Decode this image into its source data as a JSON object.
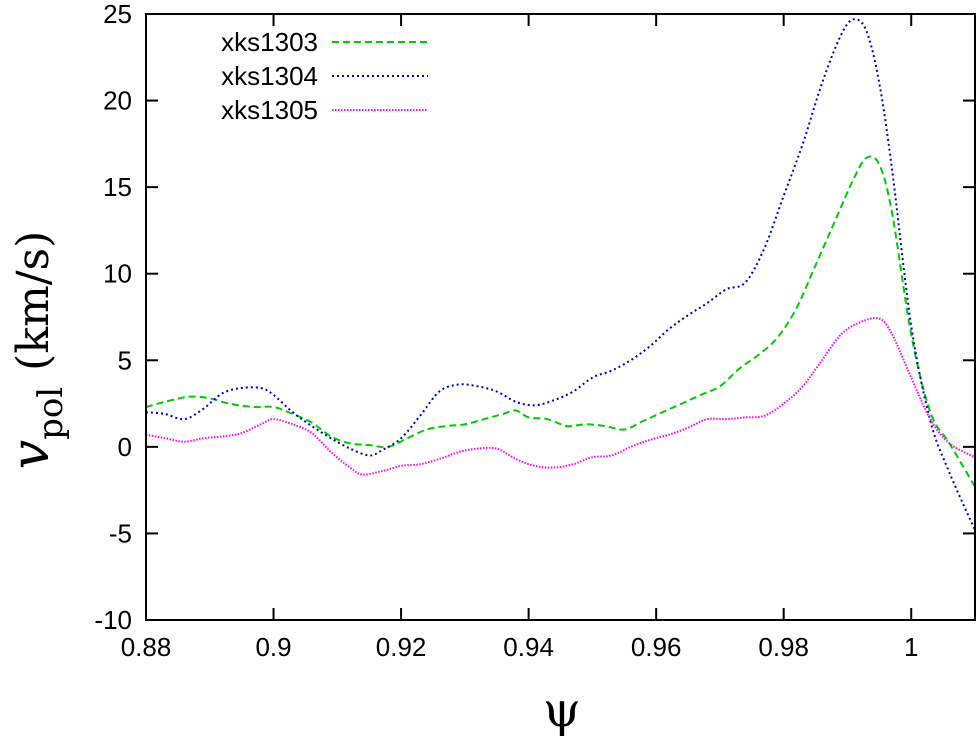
{
  "chart_data": {
    "type": "line",
    "title": "",
    "xlabel": "ψ",
    "ylabel": {
      "base": "v",
      "subscript": "pol",
      "unit": "(km/s)"
    },
    "xlim": [
      0.88,
      1.01
    ],
    "ylim": [
      -10,
      25
    ],
    "xticks": [
      0.88,
      0.9,
      0.92,
      0.94,
      0.96,
      0.98,
      1
    ],
    "xtick_labels": [
      "0.88",
      "0.9",
      "0.92",
      "0.94",
      "0.96",
      "0.98",
      "1"
    ],
    "yticks": [
      -10,
      -5,
      0,
      5,
      10,
      15,
      20,
      25
    ],
    "ytick_labels": [
      "-10",
      "-5",
      "0",
      "5",
      "10",
      "15",
      "20",
      "25"
    ],
    "grid": false,
    "legend_position": "top-left",
    "series": [
      {
        "name": "xks1303",
        "color": "#00cc00",
        "dash": "dashed",
        "x": [
          0.88,
          0.884,
          0.887,
          0.89,
          0.893,
          0.897,
          0.9,
          0.903,
          0.906,
          0.909,
          0.912,
          0.915,
          0.918,
          0.921,
          0.924,
          0.927,
          0.93,
          0.933,
          0.936,
          0.938,
          0.94,
          0.943,
          0.946,
          0.949,
          0.952,
          0.955,
          0.958,
          0.961,
          0.964,
          0.967,
          0.97,
          0.973,
          0.976,
          0.979,
          0.982,
          0.985,
          0.988,
          0.991,
          0.993,
          0.995,
          0.997,
          1,
          1.003,
          1.006,
          1.01
        ],
        "y": [
          2.3,
          2.7,
          2.9,
          2.8,
          2.5,
          2.3,
          2.3,
          1.9,
          1.4,
          0.6,
          0.2,
          0.1,
          0.0,
          0.5,
          1.0,
          1.2,
          1.3,
          1.6,
          1.9,
          2.1,
          1.7,
          1.6,
          1.2,
          1.3,
          1.2,
          1.0,
          1.5,
          2.0,
          2.5,
          3.0,
          3.5,
          4.5,
          5.3,
          6.3,
          8.0,
          10.5,
          13.0,
          15.5,
          16.7,
          16.3,
          13.5,
          6.5,
          2.0,
          0.2,
          -2.3
        ]
      },
      {
        "name": "xks1304",
        "color": "#0000cc",
        "dash": "dotted",
        "x": [
          0.88,
          0.883,
          0.886,
          0.889,
          0.892,
          0.895,
          0.898,
          0.9,
          0.903,
          0.906,
          0.909,
          0.912,
          0.915,
          0.917,
          0.92,
          0.923,
          0.926,
          0.929,
          0.932,
          0.935,
          0.938,
          0.941,
          0.944,
          0.947,
          0.95,
          0.953,
          0.956,
          0.959,
          0.962,
          0.965,
          0.968,
          0.971,
          0.974,
          0.977,
          0.98,
          0.983,
          0.986,
          0.989,
          0.991,
          0.993,
          0.995,
          0.997,
          1,
          1.003,
          1.006,
          1.01
        ],
        "y": [
          2.0,
          1.9,
          1.6,
          2.2,
          3.1,
          3.4,
          3.4,
          3.0,
          2.0,
          1.2,
          0.5,
          -0.1,
          -0.5,
          -0.2,
          0.5,
          1.8,
          3.2,
          3.6,
          3.5,
          3.2,
          2.6,
          2.4,
          2.7,
          3.2,
          4.0,
          4.4,
          5.0,
          5.8,
          6.8,
          7.6,
          8.3,
          9.1,
          9.5,
          11.5,
          14.5,
          17.5,
          21.0,
          23.8,
          24.7,
          24.0,
          21.0,
          16.0,
          7.0,
          1.5,
          -1.5,
          -4.8
        ]
      },
      {
        "name": "xks1305",
        "color": "#ff00ff",
        "dash": "dotted-fine",
        "x": [
          0.88,
          0.883,
          0.886,
          0.889,
          0.892,
          0.895,
          0.898,
          0.9,
          0.903,
          0.906,
          0.909,
          0.912,
          0.914,
          0.917,
          0.92,
          0.923,
          0.926,
          0.929,
          0.932,
          0.935,
          0.938,
          0.941,
          0.944,
          0.947,
          0.95,
          0.953,
          0.956,
          0.959,
          0.962,
          0.965,
          0.968,
          0.971,
          0.974,
          0.977,
          0.98,
          0.983,
          0.986,
          0.989,
          0.992,
          0.995,
          0.997,
          1,
          1.003,
          1.006,
          1.01
        ],
        "y": [
          0.7,
          0.5,
          0.3,
          0.5,
          0.6,
          0.8,
          1.3,
          1.6,
          1.3,
          0.8,
          -0.3,
          -1.2,
          -1.6,
          -1.4,
          -1.1,
          -1.0,
          -0.7,
          -0.3,
          -0.1,
          -0.1,
          -0.7,
          -1.1,
          -1.2,
          -1.0,
          -0.6,
          -0.5,
          0.0,
          0.4,
          0.7,
          1.1,
          1.6,
          1.6,
          1.7,
          1.8,
          2.5,
          3.5,
          5.0,
          6.5,
          7.2,
          7.4,
          6.5,
          4.0,
          1.6,
          0.2,
          -0.6
        ]
      }
    ]
  }
}
